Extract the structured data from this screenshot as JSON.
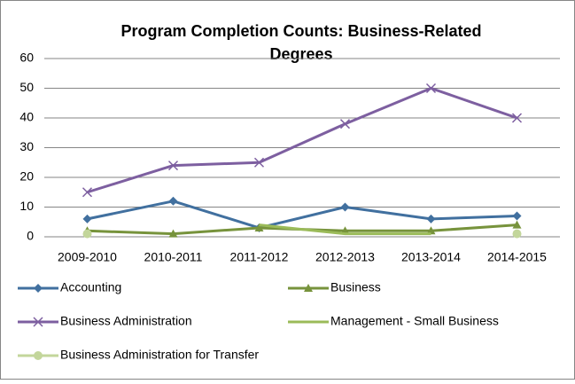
{
  "chart_data": {
    "type": "line",
    "title": [
      "Program Completion Counts:  Business-Related",
      "Degrees"
    ],
    "categories": [
      "2009-2010",
      "2010-2011",
      "2011-2012",
      "2012-2013",
      "2013-2014",
      "2014-2015"
    ],
    "series": [
      {
        "name": "Accounting",
        "color": "#41709f",
        "marker": "diamond",
        "values": [
          6,
          12,
          3,
          10,
          6,
          7
        ]
      },
      {
        "name": "Business",
        "color": "#77933c",
        "marker": "triangle",
        "values": [
          2,
          1,
          3,
          2,
          2,
          4
        ]
      },
      {
        "name": "Business Administration",
        "color": "#7d5fa0",
        "marker": "x",
        "values": [
          15,
          24,
          25,
          38,
          50,
          40
        ]
      },
      {
        "name": "Management - Small Business",
        "color": "#9bbb59",
        "marker": "none",
        "values": [
          null,
          null,
          4,
          1,
          1,
          null
        ]
      },
      {
        "name": "Business Administration for Transfer",
        "color": "#c3d69b",
        "marker": "circle",
        "values": [
          1,
          null,
          null,
          null,
          null,
          1
        ]
      }
    ],
    "ylim": [
      0,
      60
    ],
    "yticks": [
      0,
      10,
      20,
      30,
      40,
      50,
      60
    ],
    "grid": true
  }
}
